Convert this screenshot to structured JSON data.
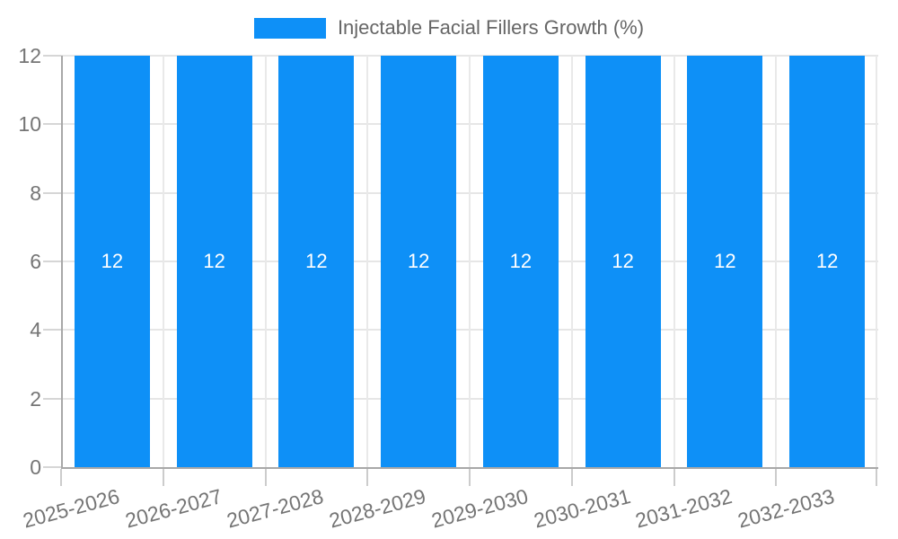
{
  "chart_data": {
    "type": "bar",
    "title": "",
    "categories": [
      "2025-2026",
      "2026-2027",
      "2027-2028",
      "2028-2029",
      "2029-2030",
      "2030-2031",
      "2031-2032",
      "2032-2033"
    ],
    "series": [
      {
        "name": "Injectable Facial Fillers Growth (%)",
        "values": [
          12,
          12,
          12,
          12,
          12,
          12,
          12,
          12
        ]
      }
    ],
    "bar_labels": [
      "12",
      "12",
      "12",
      "12",
      "12",
      "12",
      "12",
      "12"
    ],
    "xlabel": "",
    "ylabel": "",
    "ylim": [
      0,
      12
    ],
    "yticks": [
      0,
      2,
      4,
      6,
      8,
      10,
      12
    ],
    "grid": true,
    "legend_position": "top",
    "bar_color": "#0e90f7",
    "bar_label_color": "#ffffff"
  }
}
